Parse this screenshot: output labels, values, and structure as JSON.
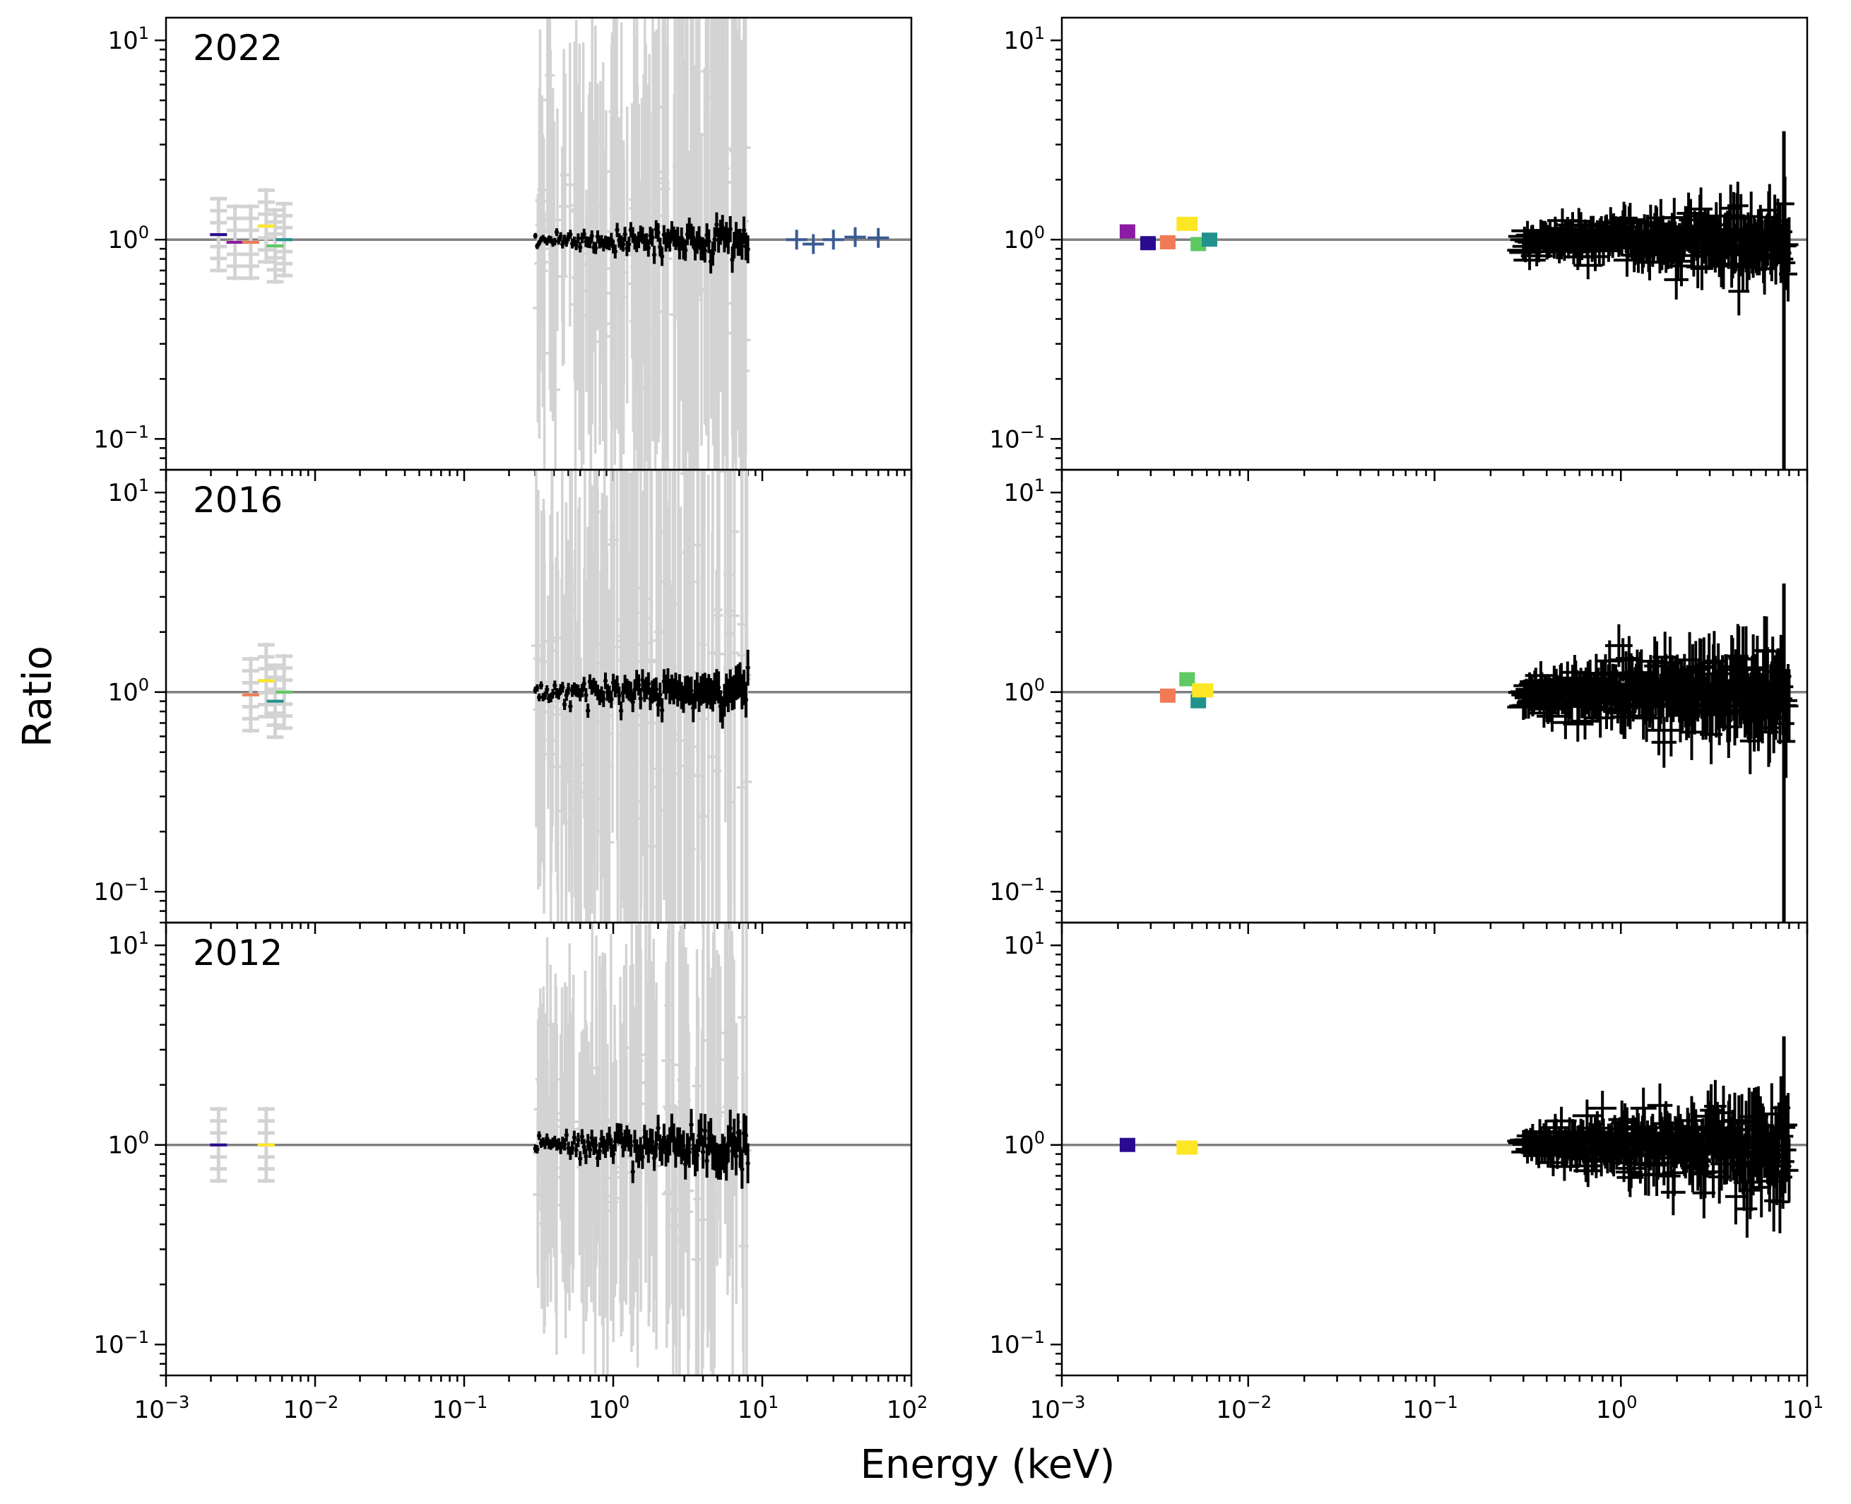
{
  "chart_data": {
    "type": "scatter",
    "xlabel": "Energy (keV)",
    "ylabel": "Ratio",
    "yscale": "log",
    "xscale": "log",
    "ylim": [
      0.07,
      13
    ],
    "reference_line": 1,
    "grid": false,
    "colors": {
      "axes": "#000000",
      "reference": "#808080",
      "background_data": "#d3d3d3",
      "main_data": "#000000",
      "hard_xray": "#3b5b92",
      "uv_filters": [
        "#2a0a8f",
        "#8c1aa3",
        "#f07b55",
        "#fde725",
        "#5ec962",
        "#21918c"
      ]
    },
    "left_xlim": [
      0.001,
      100
    ],
    "right_xlim": [
      0.001,
      10
    ],
    "left_x_ticks": [
      {
        "base": "10",
        "exp": "−3"
      },
      {
        "base": "10",
        "exp": "−2"
      },
      {
        "base": "10",
        "exp": "−1"
      },
      {
        "base": "10",
        "exp": "0"
      },
      {
        "base": "10",
        "exp": "1"
      },
      {
        "base": "10",
        "exp": "2"
      }
    ],
    "right_x_ticks": [
      {
        "base": "10",
        "exp": "−3"
      },
      {
        "base": "10",
        "exp": "−2"
      },
      {
        "base": "10",
        "exp": "−1"
      },
      {
        "base": "10",
        "exp": "0"
      },
      {
        "base": "10",
        "exp": "1"
      }
    ],
    "y_ticks": [
      {
        "base": "10",
        "exp": "1"
      },
      {
        "base": "10",
        "exp": "0"
      },
      {
        "base": "10",
        "exp": "−1"
      }
    ],
    "rows": [
      {
        "label": "2022",
        "uv": [
          {
            "x": 0.00225,
            "y": 1.06,
            "c": 0
          },
          {
            "x": 0.0029,
            "y": 0.97,
            "c": 1
          },
          {
            "x": 0.0037,
            "y": 0.97,
            "c": 2
          },
          {
            "x": 0.0047,
            "y": 1.17,
            "c": 3
          },
          {
            "x": 0.0054,
            "y": 0.93,
            "c": 4
          },
          {
            "x": 0.0062,
            "y": 1.0,
            "c": 5
          }
        ],
        "uv_right": [
          {
            "x": 0.00225,
            "y": 1.1,
            "c": 1
          },
          {
            "x": 0.0029,
            "y": 0.96,
            "c": 0
          },
          {
            "x": 0.0037,
            "y": 0.97,
            "c": 2
          },
          {
            "x": 0.0047,
            "y": 1.2,
            "c": 3
          },
          {
            "x": 0.0054,
            "y": 0.95,
            "c": 4
          },
          {
            "x": 0.0062,
            "y": 1.0,
            "c": 5
          }
        ],
        "hard": [
          {
            "x": 17,
            "y": 1.0
          },
          {
            "x": 22,
            "y": 0.95
          },
          {
            "x": 30,
            "y": 1.0
          },
          {
            "x": 42,
            "y": 1.03
          },
          {
            "x": 60,
            "y": 1.02
          }
        ],
        "xray_seed": 11,
        "xray_bg_spread": 0.62,
        "xray_fg_spread": 0.035,
        "xray_rise": 0.5,
        "xray_right_spread": 0.06
      },
      {
        "label": "2016",
        "uv": [
          {
            "x": 0.0037,
            "y": 0.97,
            "c": 2
          },
          {
            "x": 0.0047,
            "y": 1.14,
            "c": 3
          },
          {
            "x": 0.0054,
            "y": 0.9,
            "c": 5
          },
          {
            "x": 0.0062,
            "y": 1.0,
            "c": 4
          }
        ],
        "uv_right": [
          {
            "x": 0.0037,
            "y": 0.96,
            "c": 2
          },
          {
            "x": 0.0047,
            "y": 1.16,
            "c": 4
          },
          {
            "x": 0.0054,
            "y": 0.9,
            "c": 5
          },
          {
            "x": 0.0057,
            "y": 1.02,
            "c": 3
          }
        ],
        "hard": [],
        "xray_seed": 23,
        "xray_bg_spread": 0.75,
        "xray_fg_spread": 0.045,
        "xray_rise": 0.7,
        "xray_right_spread": 0.08
      },
      {
        "label": "2012",
        "uv": [
          {
            "x": 0.00225,
            "y": 1.0,
            "c": 0
          },
          {
            "x": 0.0047,
            "y": 1.0,
            "c": 3
          }
        ],
        "uv_right": [
          {
            "x": 0.00225,
            "y": 1.0,
            "c": 0
          },
          {
            "x": 0.0047,
            "y": 0.97,
            "c": 3
          }
        ],
        "hard": [],
        "xray_seed": 37,
        "xray_bg_spread": 0.55,
        "xray_fg_spread": 0.05,
        "xray_rise": 0.3,
        "xray_right_spread": 0.07
      }
    ],
    "xray_range": [
      0.3,
      8.0
    ]
  }
}
